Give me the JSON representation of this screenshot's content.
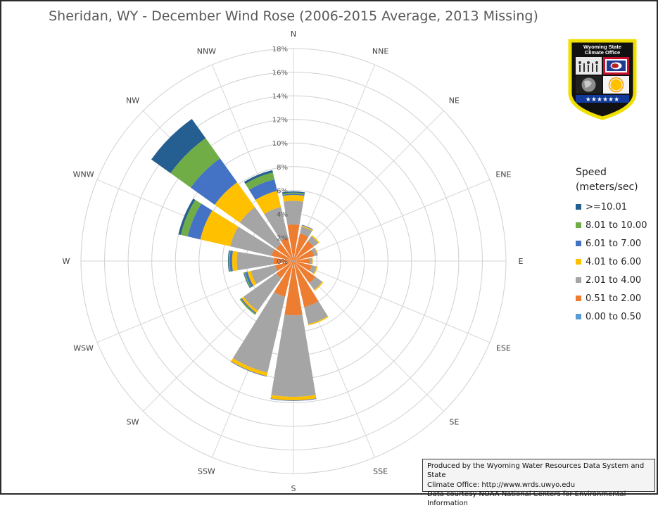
{
  "chart_data": {
    "type": "radar",
    "title": "Sheridan, WY - December Wind Rose (2006-2015 Average, 2013 Missing)",
    "directions": [
      "N",
      "NNE",
      "NE",
      "ENE",
      "E",
      "ESE",
      "SE",
      "SSE",
      "S",
      "SSW",
      "SW",
      "WSW",
      "W",
      "WNW",
      "NW",
      "NNW"
    ],
    "radial_ticks": [
      "0%",
      "2%",
      "4%",
      "6%",
      "8%",
      "10%",
      "12%",
      "14%",
      "16%",
      "18%"
    ],
    "rmax": 18,
    "stacked": true,
    "legend_title": "Speed (meters/sec)",
    "legend_position": "right",
    "series": [
      {
        "name": "0.00 to 0.50",
        "color": "#5B9BD5",
        "values": [
          0.1,
          0.1,
          0.1,
          0.1,
          0.1,
          0.1,
          0.1,
          0.1,
          0.1,
          0.1,
          0.1,
          0.1,
          0.1,
          0.1,
          0.1,
          0.1
        ]
      },
      {
        "name": "0.51 to 2.00",
        "color": "#ED7D31",
        "values": [
          3.0,
          2.3,
          2.0,
          1.7,
          1.3,
          1.5,
          2.2,
          3.9,
          4.5,
          3.0,
          1.7,
          1.5,
          1.6,
          1.8,
          1.7,
          1.9
        ]
      },
      {
        "name": "2.01 to 4.00",
        "color": "#A5A5A5",
        "values": [
          2.0,
          0.6,
          0.5,
          0.3,
          0.2,
          0.4,
          0.7,
          1.5,
          6.9,
          6.6,
          3.4,
          2.1,
          3.1,
          3.6,
          3.8,
          2.7
        ]
      },
      {
        "name": "4.01 to 6.00",
        "color": "#FFC000",
        "values": [
          0.5,
          0.1,
          0.1,
          0.05,
          0.05,
          0.1,
          0.1,
          0.1,
          0.3,
          0.3,
          0.2,
          0.3,
          0.4,
          2.6,
          2.6,
          1.4
        ]
      },
      {
        "name": "6.01 to 7.00",
        "color": "#4472C4",
        "values": [
          0.1,
          0.05,
          0.0,
          0.0,
          0.0,
          0.0,
          0.0,
          0.0,
          0.05,
          0.05,
          0.1,
          0.2,
          0.2,
          1.1,
          2.5,
          1.0
        ]
      },
      {
        "name": "8.01 to 10.00",
        "color": "#70AD47",
        "values": [
          0.1,
          0.0,
          0.0,
          0.0,
          0.0,
          0.0,
          0.0,
          0.0,
          0.0,
          0.0,
          0.1,
          0.1,
          0.1,
          0.6,
          2.1,
          0.6
        ]
      },
      {
        "name": ">=10.01",
        "color": "#255E91",
        "values": [
          0.1,
          0.0,
          0.0,
          0.0,
          0.0,
          0.0,
          0.0,
          0.0,
          0.0,
          0.0,
          0.0,
          0.05,
          0.05,
          0.2,
          2.0,
          0.2
        ]
      }
    ]
  },
  "legend": {
    "title_line1": "Speed",
    "title_line2": "(meters/sec)",
    "items": [
      {
        "label": ">=10.01",
        "color": "#255E91"
      },
      {
        "label": "8.01 to 10.00",
        "color": "#70AD47"
      },
      {
        "label": "6.01 to 7.00",
        "color": "#4472C4"
      },
      {
        "label": "4.01 to 6.00",
        "color": "#FFC000"
      },
      {
        "label": "2.01 to 4.00",
        "color": "#A5A5A5"
      },
      {
        "label": "0.51 to 2.00",
        "color": "#ED7D31"
      },
      {
        "label": "0.00 to 0.50",
        "color": "#5B9BD5"
      }
    ]
  },
  "credits": {
    "line1": "Produced by the Wyoming Water Resources Data System and State",
    "line2": "Climate Office: http://www.wrds.uwyo.edu",
    "line3": "Data courtesy NOAA National Centers for Environmental Information"
  },
  "logo": {
    "line1": "Wyoming State",
    "line2": "Climate Office",
    "stars": "★★★★★★"
  }
}
